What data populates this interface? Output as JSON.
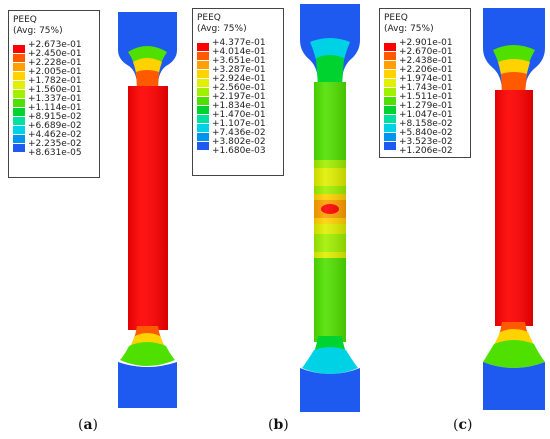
{
  "panels": [
    {
      "id": "a",
      "caption_letter": "a",
      "legend": {
        "title": "PEEQ",
        "subtitle": "(Avg: 75%)",
        "values": [
          "+2.673e-01",
          "+2.450e-01",
          "+2.228e-01",
          "+2.005e-01",
          "+1.782e-01",
          "+1.560e-01",
          "+1.337e-01",
          "+1.114e-01",
          "+8.915e-02",
          "+6.689e-02",
          "+4.462e-02",
          "+2.235e-02",
          "+8.631e-05"
        ]
      }
    },
    {
      "id": "b",
      "caption_letter": "b",
      "legend": {
        "title": "PEEQ",
        "subtitle": "(Avg: 75%)",
        "values": [
          "+4.377e-01",
          "+4.014e-01",
          "+3.651e-01",
          "+3.287e-01",
          "+2.924e-01",
          "+2.560e-01",
          "+2.197e-01",
          "+1.834e-01",
          "+1.470e-01",
          "+1.107e-01",
          "+7.436e-02",
          "+3.802e-02",
          "+1.680e-03"
        ]
      }
    },
    {
      "id": "c",
      "caption_letter": "c",
      "legend": {
        "title": "PEEQ",
        "subtitle": "(Avg: 75%)",
        "values": [
          "+2.901e-01",
          "+2.670e-01",
          "+2.438e-01",
          "+2.206e-01",
          "+1.974e-01",
          "+1.743e-01",
          "+1.511e-01",
          "+1.279e-01",
          "+1.047e-01",
          "+8.158e-02",
          "+5.840e-02",
          "+3.523e-02",
          "+1.206e-02"
        ]
      }
    }
  ],
  "colors": {
    "contour_scale": [
      "#ff0000",
      "#ff5a00",
      "#ffa000",
      "#ffd200",
      "#e0f000",
      "#a0f000",
      "#50e000",
      "#00d230",
      "#00e0a0",
      "#00d2e6",
      "#0096f0",
      "#1e5af0",
      "#0000ff"
    ]
  }
}
